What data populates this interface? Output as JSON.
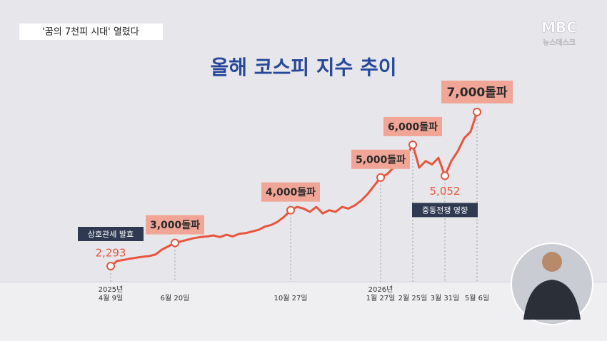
{
  "banner": "'꿈의 7천피 시대' 열렸다",
  "logo": "MBC",
  "logo_sub": "뉴스데스크",
  "chart_data": {
    "type": "line",
    "title": "올해 코스피 지수 추이",
    "color": "#e8553f",
    "categories": [
      "2025년\n4월 9일",
      null,
      null,
      null,
      null,
      null,
      null,
      null,
      null,
      null,
      "6월 20일",
      null,
      null,
      null,
      null,
      null,
      null,
      null,
      null,
      null,
      null,
      null,
      null,
      null,
      null,
      null,
      null,
      null,
      "10월 27일",
      null,
      null,
      null,
      null,
      null,
      null,
      null,
      null,
      null,
      null,
      null,
      null,
      null,
      "2026년\n1월 27일",
      null,
      null,
      null,
      null,
      "2월 25일",
      null,
      null,
      null,
      null,
      "3월 31일",
      null,
      null,
      null,
      null,
      "5월 6일"
    ],
    "values": [
      2293,
      2450,
      2480,
      2520,
      2550,
      2580,
      2600,
      2650,
      2800,
      2900,
      3000,
      3050,
      3100,
      3150,
      3180,
      3200,
      3230,
      3180,
      3250,
      3200,
      3280,
      3300,
      3350,
      3400,
      3500,
      3550,
      3650,
      3800,
      4000,
      4100,
      4050,
      3950,
      4100,
      3900,
      4000,
      3950,
      4100,
      4050,
      4150,
      4300,
      4500,
      4750,
      5000,
      5100,
      5300,
      5500,
      5650,
      6000,
      5300,
      5500,
      5400,
      5600,
      5052,
      5500,
      5800,
      6200,
      6400,
      7000
    ],
    "value_labels": [
      "2,293",
      null,
      null,
      null,
      null,
      null,
      null,
      null,
      null,
      null,
      null,
      null,
      null,
      null,
      null,
      null,
      null,
      null,
      null,
      null,
      null,
      null,
      null,
      null,
      null,
      null,
      null,
      null,
      null,
      null,
      null,
      null,
      null,
      null,
      null,
      null,
      null,
      null,
      null,
      null,
      null,
      null,
      null,
      null,
      null,
      null,
      null,
      null,
      null,
      null,
      null,
      null,
      "5,052",
      null,
      null,
      null,
      null,
      null
    ],
    "milestones": [
      null,
      null,
      null,
      null,
      null,
      null,
      null,
      null,
      null,
      null,
      "3,000돌파",
      null,
      null,
      null,
      null,
      null,
      null,
      null,
      null,
      null,
      null,
      null,
      null,
      null,
      null,
      null,
      null,
      null,
      "4,000돌파",
      null,
      null,
      null,
      null,
      null,
      null,
      null,
      null,
      null,
      null,
      null,
      null,
      null,
      "5,000돌파",
      null,
      null,
      null,
      null,
      "6,000돌파",
      null,
      null,
      null,
      null,
      null,
      null,
      null,
      null,
      null,
      "7,000돌파"
    ],
    "events": [
      "상호관세 발효",
      null,
      null,
      null,
      null,
      null,
      null,
      null,
      null,
      null,
      null,
      null,
      null,
      null,
      null,
      null,
      null,
      null,
      null,
      null,
      null,
      null,
      null,
      null,
      null,
      null,
      null,
      null,
      null,
      null,
      null,
      null,
      null,
      null,
      null,
      null,
      null,
      null,
      null,
      null,
      null,
      null,
      null,
      null,
      null,
      null,
      null,
      null,
      null,
      null,
      null,
      null,
      "중동전쟁 영향",
      null,
      null,
      null,
      null,
      null
    ]
  }
}
